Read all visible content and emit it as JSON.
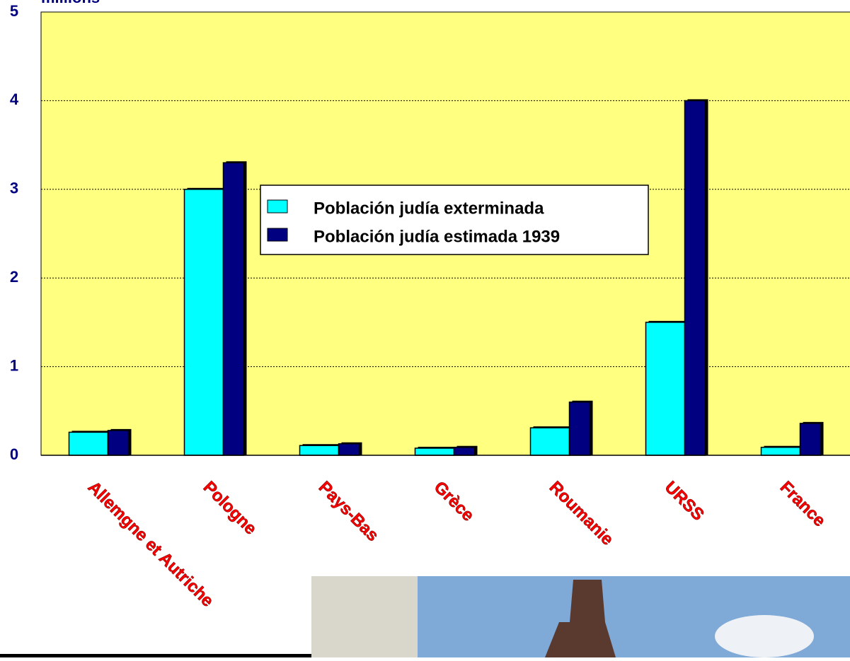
{
  "chart_data": {
    "type": "bar",
    "y_label": "millions",
    "categories": [
      "Allemgne et Autriche",
      "Pologne",
      "Pays-Bas",
      "Grèce",
      "Roumanie",
      "URSS",
      "France"
    ],
    "series": [
      {
        "name": "Población judía exterminada",
        "color": "#00ffff",
        "values": [
          0.26,
          3.0,
          0.11,
          0.08,
          0.31,
          1.5,
          0.09
        ]
      },
      {
        "name": "Población judía estimada 1939",
        "color": "#000080",
        "values": [
          0.28,
          3.3,
          0.13,
          0.09,
          0.6,
          4.0,
          0.36
        ]
      }
    ],
    "ylim": [
      0,
      5
    ],
    "yticks": [
      0,
      1,
      2,
      3,
      4,
      5
    ],
    "grid": true,
    "background": "#ffff80",
    "label_color": "#ff0000"
  }
}
